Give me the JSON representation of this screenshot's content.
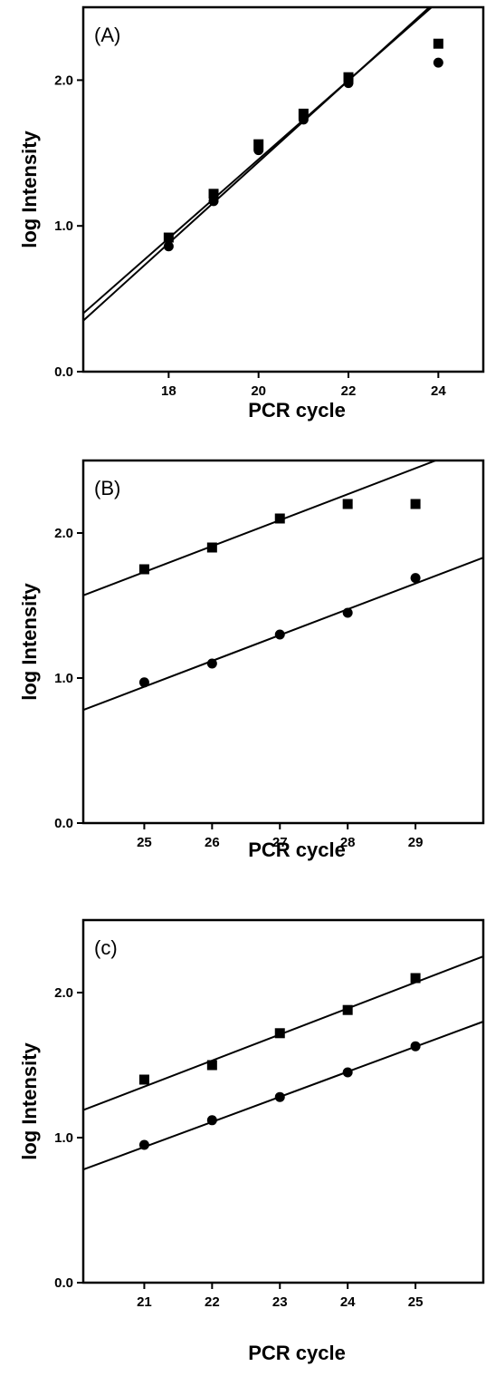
{
  "chart_data": [
    {
      "type": "scatter",
      "panel_label": "(A)",
      "xlabel": "PCR cycle",
      "ylabel": "log Intensity",
      "xlim": [
        16.1,
        25
      ],
      "ylim": [
        0,
        2.5
      ],
      "xticks": [
        18,
        20,
        22,
        24
      ],
      "yticks": [
        0,
        1,
        2
      ],
      "ytick_labels": [
        "0.0",
        "1.0",
        "2.0"
      ],
      "grid": false,
      "series": [
        {
          "marker": "square",
          "x": [
            18,
            19,
            20,
            21,
            22,
            24
          ],
          "y": [
            0.92,
            1.22,
            1.56,
            1.77,
            2.02,
            2.25
          ],
          "fit": {
            "x": [
              16.1,
              23.85
            ],
            "y": [
              0.4,
              2.5
            ]
          }
        },
        {
          "marker": "circle",
          "x": [
            18,
            19,
            20,
            21,
            22,
            24
          ],
          "y": [
            0.86,
            1.17,
            1.52,
            1.73,
            1.98,
            2.12
          ],
          "fit": {
            "x": [
              16.1,
              23.8
            ],
            "y": [
              0.35,
              2.5
            ]
          }
        }
      ]
    },
    {
      "type": "scatter",
      "panel_label": "(B)",
      "xlabel": "PCR cycle",
      "ylabel": "log Intensity",
      "xlim": [
        24.1,
        30
      ],
      "ylim": [
        0,
        2.5
      ],
      "xticks": [
        25,
        26,
        27,
        28,
        29
      ],
      "yticks": [
        0,
        1,
        2
      ],
      "ytick_labels": [
        "0.0",
        "1.0",
        "2.0"
      ],
      "grid": false,
      "series": [
        {
          "marker": "square",
          "x": [
            25,
            26,
            27,
            28,
            29
          ],
          "y": [
            1.75,
            1.9,
            2.1,
            2.2,
            2.2
          ],
          "fit": {
            "x": [
              24.1,
              29.3
            ],
            "y": [
              1.57,
              2.5
            ]
          }
        },
        {
          "marker": "circle",
          "x": [
            25,
            26,
            27,
            28,
            29
          ],
          "y": [
            0.97,
            1.1,
            1.3,
            1.45,
            1.69
          ],
          "fit": {
            "x": [
              24.1,
              30
            ],
            "y": [
              0.78,
              1.83
            ]
          }
        }
      ]
    },
    {
      "type": "scatter",
      "panel_label": "(c)",
      "xlabel": "PCR cycle",
      "ylabel": "log Intensity",
      "xlim": [
        20.1,
        26
      ],
      "ylim": [
        0,
        2.5
      ],
      "xticks": [
        21,
        22,
        23,
        24,
        25
      ],
      "yticks": [
        0,
        1,
        2
      ],
      "ytick_labels": [
        "0.0",
        "1.0",
        "2.0"
      ],
      "grid": false,
      "series": [
        {
          "marker": "square",
          "x": [
            21,
            22,
            23,
            24,
            25
          ],
          "y": [
            1.4,
            1.5,
            1.72,
            1.88,
            2.1
          ],
          "fit": {
            "x": [
              20.1,
              26
            ],
            "y": [
              1.19,
              2.25
            ]
          }
        },
        {
          "marker": "circle",
          "x": [
            21,
            22,
            23,
            24,
            25
          ],
          "y": [
            0.95,
            1.12,
            1.28,
            1.45,
            1.63
          ],
          "fit": {
            "x": [
              20.1,
              26
            ],
            "y": [
              0.78,
              1.8
            ]
          }
        }
      ]
    }
  ]
}
